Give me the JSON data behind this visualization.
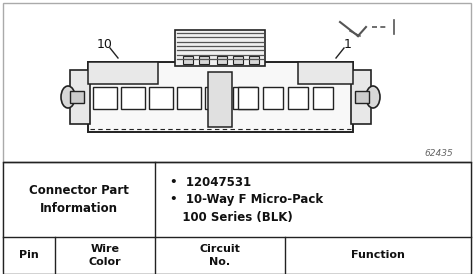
{
  "bg_color": "#ffffff",
  "outer_border_color": "#333333",
  "line_color": "#222222",
  "text_color": "#111111",
  "gray_fill": "#d8d8d8",
  "light_fill": "#f0f0f0",
  "white_fill": "#ffffff",
  "label_10": "10",
  "label_1": "1",
  "diagram_number": "62435",
  "connector_label": "Connector Part\nInformation",
  "bullet1": "•  12047531",
  "bullet2": "•  10-Way F Micro-Pack\n   100 Series (BLK)",
  "col_wire": "Wire\nColor",
  "col_circuit": "Circuit\nNo.",
  "col_pin": "Pin",
  "col_function": "Function",
  "figsize": [
    4.74,
    2.74
  ],
  "dpi": 100
}
